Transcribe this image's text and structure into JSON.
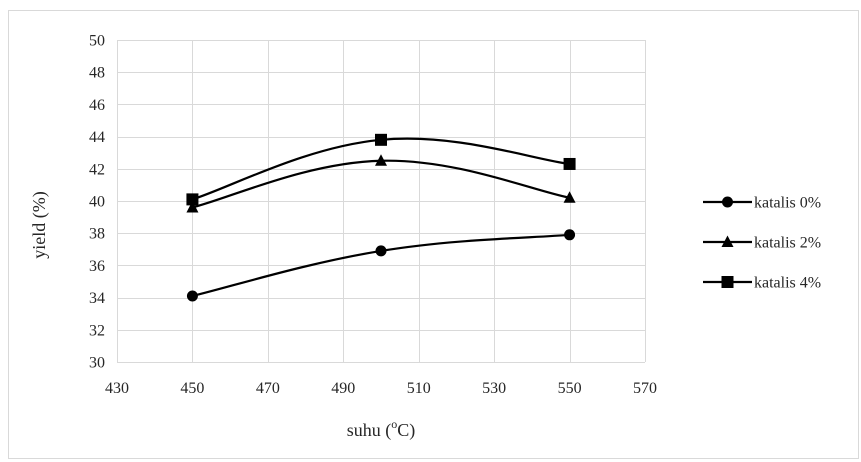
{
  "chart_data": {
    "type": "line",
    "title": "",
    "xlabel": "suhu (",
    "xlabel_sup": "o",
    "xlabel_suffix": "C)",
    "ylabel": "yield (%)",
    "xlim": [
      430,
      570
    ],
    "ylim": [
      30,
      50
    ],
    "xticks": [
      430,
      450,
      470,
      490,
      510,
      530,
      550,
      570
    ],
    "yticks": [
      30,
      32,
      34,
      36,
      38,
      40,
      42,
      44,
      46,
      48,
      50
    ],
    "grid": true,
    "smooth": true,
    "legend_position": "right",
    "series": [
      {
        "name": "katalis 0%",
        "marker": "circle",
        "x": [
          450,
          500,
          550
        ],
        "y": [
          34.1,
          36.9,
          37.9
        ]
      },
      {
        "name": "katalis 2%",
        "marker": "triangle",
        "x": [
          450,
          500,
          550
        ],
        "y": [
          39.6,
          42.5,
          40.2
        ]
      },
      {
        "name": "katalis 4%",
        "marker": "square",
        "x": [
          450,
          500,
          550
        ],
        "y": [
          40.1,
          43.8,
          42.3
        ]
      }
    ],
    "line_color": "#000000",
    "grid_color": "#d9d9d9"
  }
}
